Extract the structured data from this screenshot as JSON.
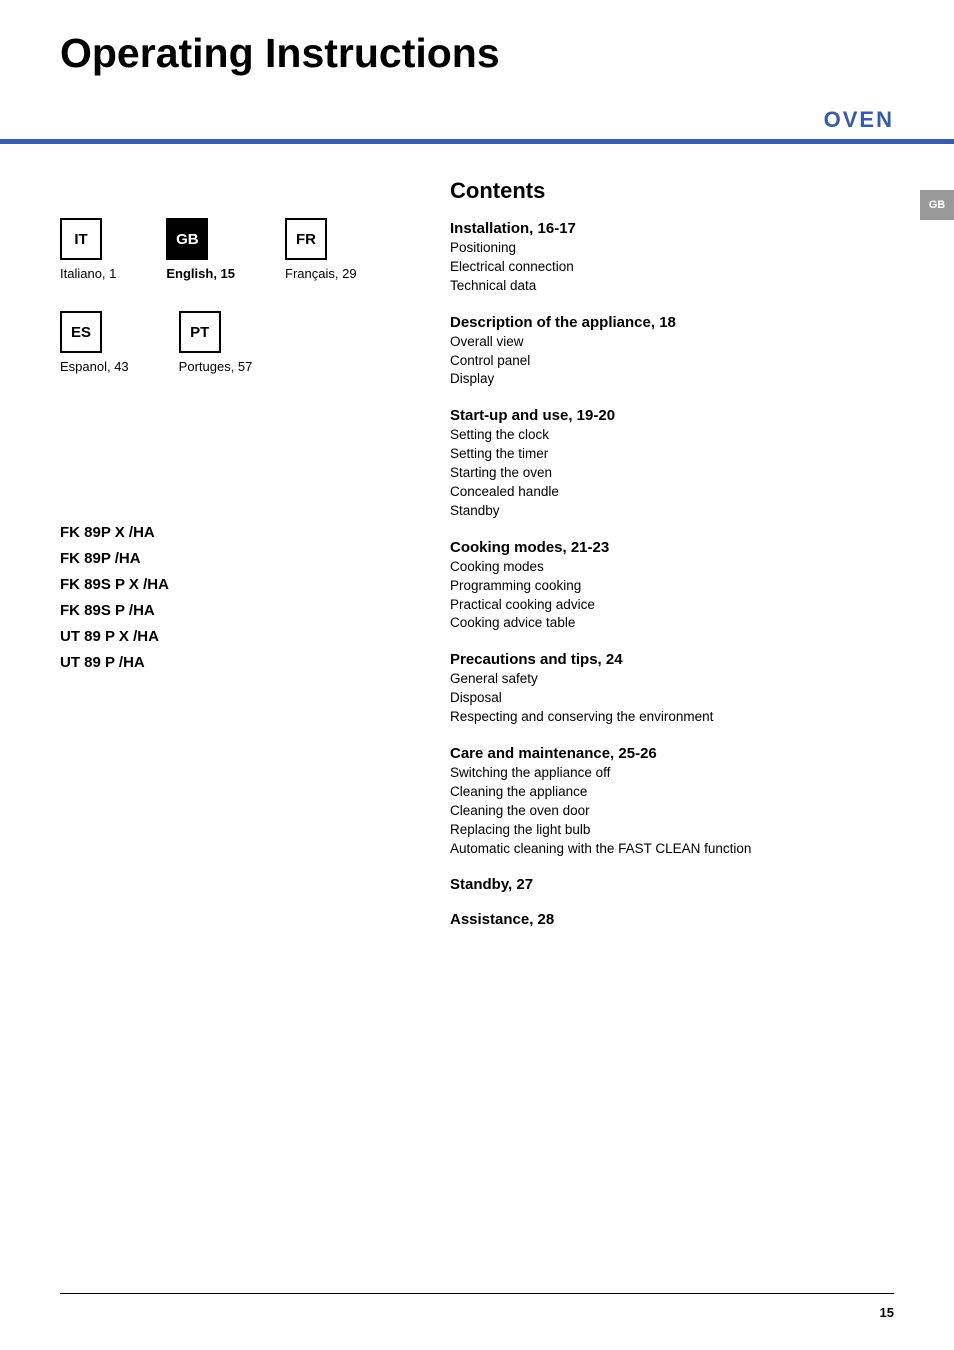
{
  "title": "Operating Instructions",
  "subtitle": "OVEN",
  "side_tab": "GB",
  "colors": {
    "accent": "#3a5ca8",
    "tab_bg": "#999999",
    "text": "#000000",
    "bg": "#ffffff"
  },
  "languages": [
    {
      "code": "IT",
      "label": "Italiano, 1",
      "active": false
    },
    {
      "code": "GB",
      "label": "English, 15",
      "active": true
    },
    {
      "code": "FR",
      "label": "Français, 29",
      "active": false
    },
    {
      "code": "ES",
      "label": "Espanol, 43",
      "active": false
    },
    {
      "code": "PT",
      "label": "Portuges, 57",
      "active": false
    }
  ],
  "models": [
    "FK 89P X /HA",
    "FK 89P /HA",
    "FK 89S P X /HA",
    "FK 89S P /HA",
    "UT 89 P X /HA",
    "UT 89 P /HA"
  ],
  "contents_title": "Contents",
  "sections": [
    {
      "title": "Installation, 16-17",
      "items": [
        "Positioning",
        "Electrical connection",
        "Technical data"
      ]
    },
    {
      "title": "Description of the appliance, 18",
      "items": [
        "Overall view",
        "Control panel",
        "Display"
      ]
    },
    {
      "title": "Start-up and use, 19-20",
      "items": [
        "Setting the clock",
        "Setting the timer",
        "Starting the oven",
        "Concealed handle",
        "Standby"
      ]
    },
    {
      "title": "Cooking modes, 21-23",
      "items": [
        "Cooking modes",
        "Programming cooking",
        "Practical cooking advice",
        "Cooking advice table"
      ]
    },
    {
      "title": "Precautions and tips, 24",
      "items": [
        "General safety",
        "Disposal",
        "Respecting and conserving the environment"
      ]
    },
    {
      "title": "Care and maintenance, 25-26",
      "items": [
        "Switching the appliance off",
        "Cleaning the appliance",
        "Cleaning the oven door",
        "Replacing the light bulb",
        "Automatic cleaning with the FAST CLEAN function"
      ]
    },
    {
      "title": "Standby, 27",
      "items": []
    },
    {
      "title": "Assistance, 28",
      "items": []
    }
  ],
  "page_number": "15"
}
